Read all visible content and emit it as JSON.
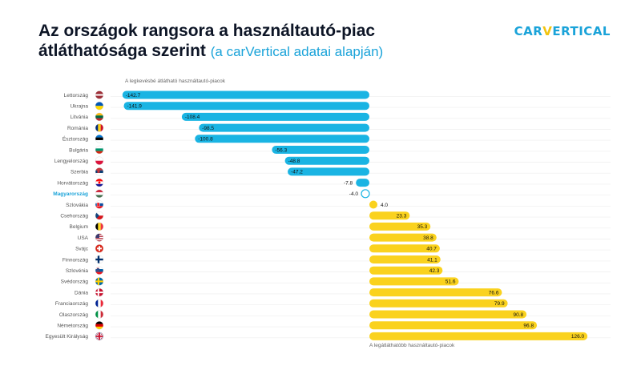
{
  "header": {
    "title_line1": "Az országok rangsora a használtautó-piac",
    "title_line2": "átláthatósága szerint",
    "subtitle": "(a carVertical adatai alapján)"
  },
  "logo": {
    "part1": "CAR",
    "part2": "V",
    "part3": "ERTICAL"
  },
  "colors": {
    "negative": "#1ab4e3",
    "positive": "#fad21e",
    "highlight": "#1aa3d9",
    "text": "#0d1526"
  },
  "chart_data": {
    "type": "bar",
    "orientation": "horizontal",
    "title": "",
    "xlabel": "",
    "ylabel": "",
    "xlim": [
      -150,
      130
    ],
    "grid": true,
    "annotations": {
      "top": "A legkevésbé átlátható használtautó-piacok",
      "bottom": "A legátláthatóbb használtautó-piacok"
    },
    "highlight": "Magyarország",
    "categories": [
      "Lettország",
      "Ukrajna",
      "Litvánia",
      "Románia",
      "Észtország",
      "Bulgária",
      "Lengyelország",
      "Szerbia",
      "Horvátország",
      "Magyarország",
      "Szlovákia",
      "Csehország",
      "Belgium",
      "USA",
      "Svájc",
      "Finnország",
      "Szlovénia",
      "Svédország",
      "Dánia",
      "Franciaország",
      "Olaszország",
      "Németország",
      "Egyesült Királyság"
    ],
    "values": [
      -142.7,
      -141.9,
      -108.4,
      -98.5,
      -100.8,
      -56.3,
      -48.8,
      -47.2,
      -7.8,
      -4.0,
      4.0,
      23.3,
      35.3,
      38.8,
      40.7,
      41.1,
      42.3,
      51.6,
      76.6,
      79.9,
      90.8,
      96.8,
      126.0
    ],
    "labels": [
      "-142.7",
      "-141.9",
      "-108.4",
      "-98.5",
      "-100.8",
      "-56.3",
      "-48.8",
      "-47.2",
      "-7.8",
      "-4.0",
      "4.0",
      "23.3",
      "35.3",
      "38.8",
      "40.7",
      "41.1",
      "42.3",
      "51.6",
      "76.6",
      "79.9",
      "90.8",
      "96.8",
      "126.0"
    ],
    "flags": [
      "flag-latvia",
      "flag-ukraine",
      "flag-lithuania",
      "flag-romania",
      "flag-estonia",
      "flag-bulgaria",
      "flag-poland",
      "flag-serbia",
      "flag-croatia",
      "flag-hungary",
      "flag-slovakia",
      "flag-czechia",
      "flag-belgium",
      "flag-usa",
      "flag-switzerland",
      "flag-finland",
      "flag-slovenia",
      "flag-sweden",
      "flag-denmark",
      "flag-france",
      "flag-italy",
      "flag-germany",
      "flag-uk"
    ]
  }
}
